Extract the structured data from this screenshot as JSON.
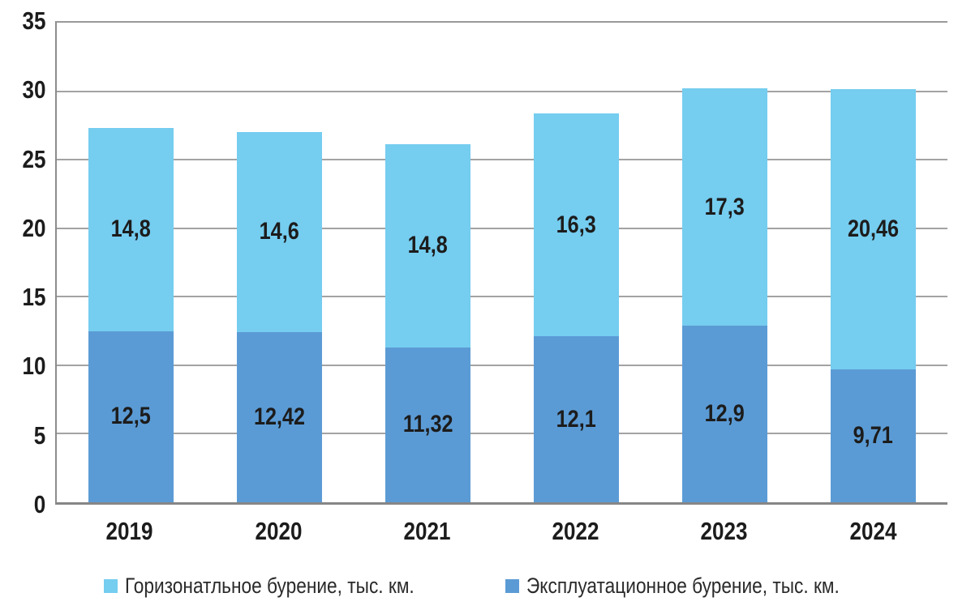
{
  "chart_data": {
    "type": "bar",
    "stacked": true,
    "title": "",
    "xlabel": "",
    "ylabel": "",
    "categories": [
      "2019",
      "2020",
      "2021",
      "2022",
      "2023",
      "2024"
    ],
    "series": [
      {
        "name": "Эксплуатационное бурение, тыс. км.",
        "color": "#5B9BD5",
        "values": [
          12.5,
          12.42,
          11.32,
          12.1,
          12.9,
          9.71
        ],
        "labels": [
          "12,5",
          "12,42",
          "11,32",
          "12,1",
          "12,9",
          "9,71"
        ]
      },
      {
        "name": "Горизонатльное бурение, тыс. км.",
        "color": "#75CDF0",
        "values": [
          14.8,
          14.6,
          14.8,
          16.3,
          17.3,
          20.46
        ],
        "labels": [
          "14,8",
          "14,6",
          "14,8",
          "16,3",
          "17,3",
          "20,46"
        ]
      }
    ],
    "totals": [
      27.3,
      27.02,
      26.12,
      28.4,
      30.2,
      30.17
    ],
    "ylim": [
      0,
      35
    ],
    "ytick_step": 5,
    "yticks": [
      "0",
      "5",
      "10",
      "15",
      "20",
      "25",
      "30",
      "35"
    ],
    "grid": true,
    "gridline_color": "#a3a3a3",
    "axis_color": "#8c8c8c",
    "label_color": "#1c1c1c",
    "legend_position": "bottom",
    "legend": [
      {
        "label": "Горизонатльное бурение, тыс. км.",
        "color": "#75CDF0"
      },
      {
        "label": "Эксплуатационное бурение, тыс. км.",
        "color": "#5B9BD5"
      }
    ]
  }
}
